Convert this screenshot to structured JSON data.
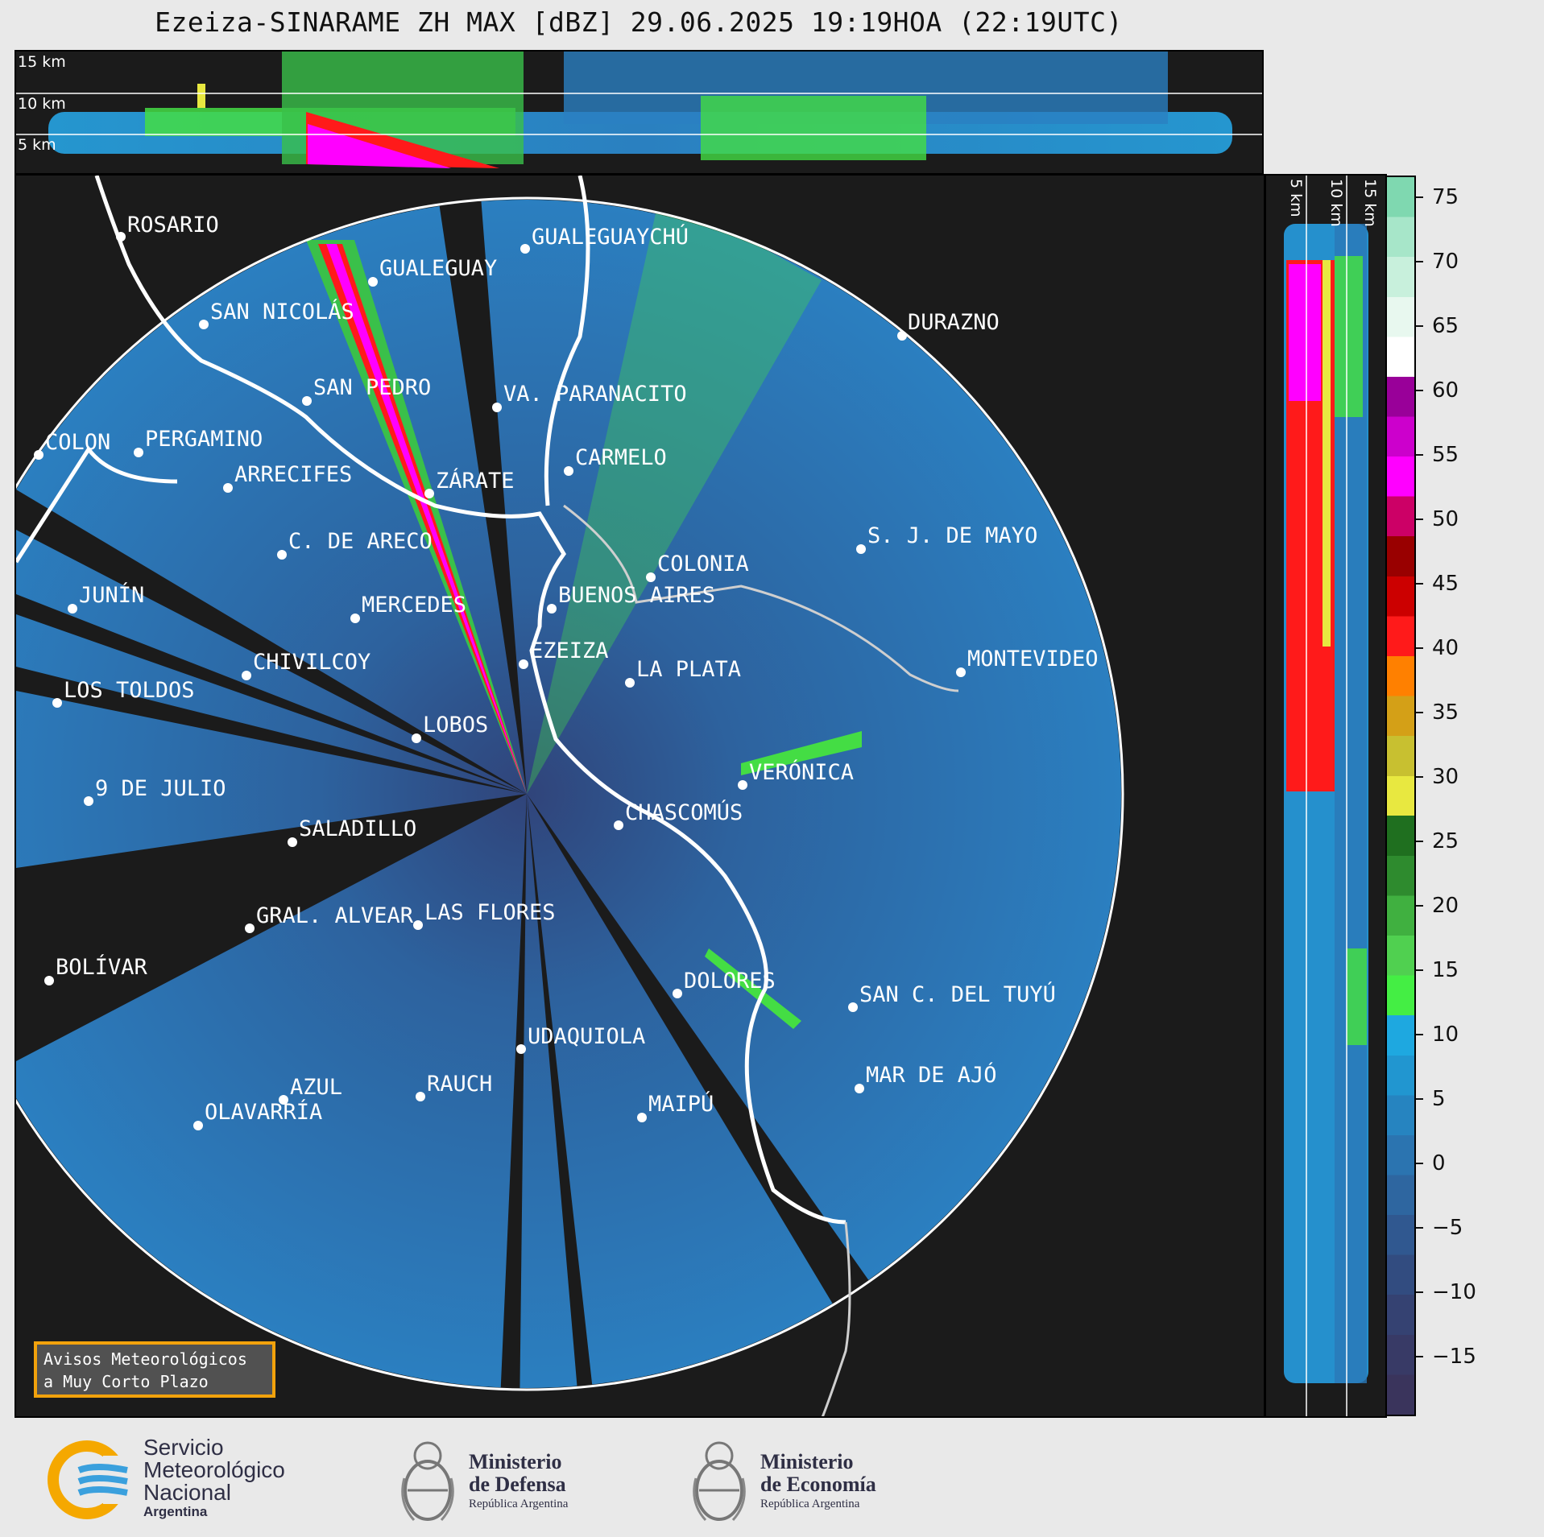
{
  "title": "Ezeiza-SINARAME ZH MAX [dBZ] 29.06.2025 19:19HOA (22:19UTC)",
  "top_panel": {
    "height_labels": [
      "15 km",
      "10 km",
      "5 km"
    ]
  },
  "side_panel": {
    "height_labels": [
      "5 km",
      "10 km",
      "15 km"
    ]
  },
  "colorbar": {
    "ticks": [
      "75",
      "70",
      "65",
      "60",
      "55",
      "50",
      "45",
      "40",
      "35",
      "30",
      "25",
      "20",
      "15",
      "10",
      "5",
      "0",
      "−5",
      "−10",
      "−15"
    ],
    "colors": [
      "#7fd8b0",
      "#a7e6c9",
      "#c8f0dc",
      "#e8f8ef",
      "#ffffff",
      "#990099",
      "#cc00cc",
      "#ff00ff",
      "#cc0066",
      "#990000",
      "#cc0000",
      "#ff1a1a",
      "#ff8000",
      "#d4a017",
      "#c8c030",
      "#e8e840",
      "#1f6f1f",
      "#2e8b2e",
      "#40b040",
      "#50d050",
      "#44ee44",
      "#1ea8e0",
      "#2196d0",
      "#2684c0",
      "#2b74b0",
      "#2e66a0",
      "#305890",
      "#324c80",
      "#354272",
      "#383a66",
      "#3a345c"
    ]
  },
  "cities": [
    "ROSARIO",
    "GUALEGUAYCHÚ",
    "GUALEGUAY",
    "SAN NICOLÁS",
    "DURAZNO",
    "SAN PEDRO",
    "VA. PARANACITO",
    "COLON",
    "PERGAMINO",
    "CARMELO",
    "ARRECIFES",
    "ZÁRATE",
    "S. J. DE MAYO",
    "C. DE ARECO",
    "COLONIA",
    "JUNÍN",
    "BUENOS AIRES",
    "MERCEDES",
    "MONTEVIDEO",
    "EZEIZA",
    "CHIVILCOY",
    "LA PLATA",
    "LOS TOLDOS",
    "LOBOS",
    "VERÓNICA",
    "9 DE JULIO",
    "CHASCOMÚS",
    "SALADILLO",
    "GRAL. ALVEAR",
    "LAS FLORES",
    "BOLÍVAR",
    "DOLORES",
    "SAN C. DEL TUYÚ",
    "UDAQUIOLA",
    "MAR DE AJÓ",
    "AZUL",
    "RAUCH",
    "OLAVARRÍA",
    "MAIPÚ"
  ],
  "notice": {
    "line1": "Avisos Meteorológicos",
    "line2": "a Muy Corto Plazo"
  },
  "footer": {
    "smn": {
      "line1": "Servicio",
      "line2": "Meteorológico",
      "line3": "Nacional",
      "line4": "Argentina"
    },
    "defensa": {
      "line1": "Ministerio",
      "line2": "de Defensa",
      "line3": "República Argentina"
    },
    "economia": {
      "line1": "Ministerio",
      "line2": "de Economía",
      "line3": "República Argentina"
    }
  }
}
